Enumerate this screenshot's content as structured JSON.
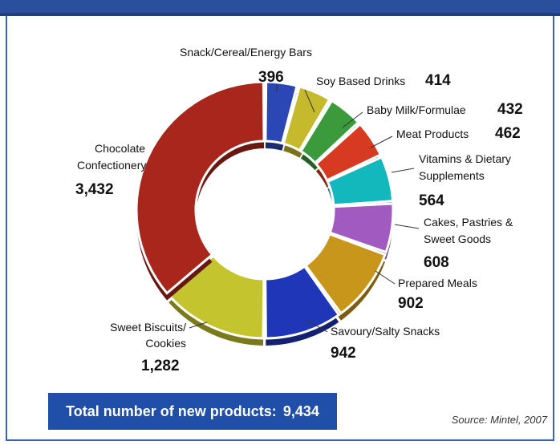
{
  "total_label": "Total number of new products:",
  "total_value": "9,434",
  "source": "Source: Mintel, 2007",
  "chart_data": {
    "type": "pie",
    "donut": true,
    "slices": [
      {
        "label": "Snack/Cereal/Energy Bars",
        "value": 396,
        "value_text": "396",
        "color": "#2b46b5"
      },
      {
        "label": "Soy Based Drinks",
        "value": 414,
        "value_text": "414",
        "color": "#c5ba2e"
      },
      {
        "label": "Baby Milk/Formulae",
        "value": 432,
        "value_text": "432",
        "color": "#3a9a3c"
      },
      {
        "label": "Meat Products",
        "value": 462,
        "value_text": "462",
        "color": "#d63b22"
      },
      {
        "label": "Vitamins & Dietary Supplements",
        "value": 564,
        "value_text": "564",
        "color": "#12b8bc"
      },
      {
        "label": "Cakes, Pastries & Sweet Goods",
        "value": 608,
        "value_text": "608",
        "color": "#a05ac0"
      },
      {
        "label": "Prepared Meals",
        "value": 902,
        "value_text": "902",
        "color": "#c9961c"
      },
      {
        "label": "Savoury/Salty Snacks",
        "value": 942,
        "value_text": "942",
        "color": "#2036b8"
      },
      {
        "label": "Sweet Biscuits/ Cookies",
        "value": 1282,
        "value_text": "1,282",
        "color": "#c4c42e"
      },
      {
        "label": "Chocolate Confectionery",
        "value": 3432,
        "value_text": "3,432",
        "color": "#a8261b"
      }
    ]
  }
}
